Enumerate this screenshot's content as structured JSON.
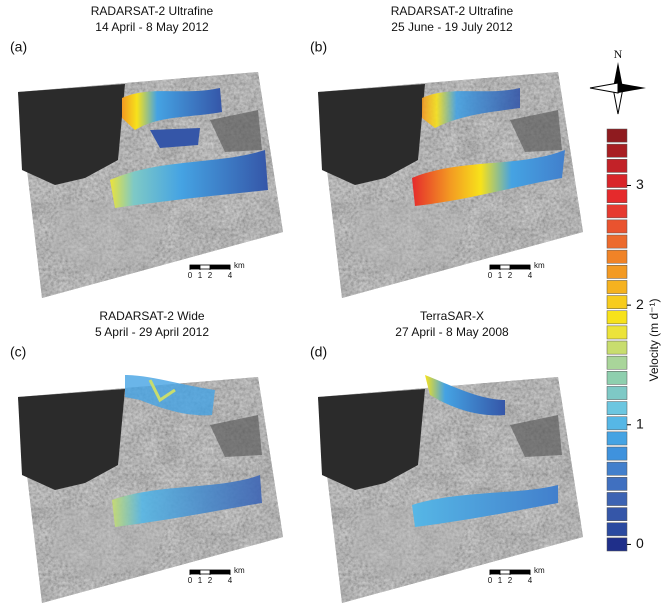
{
  "panels": [
    {
      "label": "(a)",
      "title": [
        "RADARSAT-2 Ultrafine",
        "14 April - 8 May 2012"
      ]
    },
    {
      "label": "(b)",
      "title": [
        "RADARSAT-2 Ultrafine",
        "25 June - 19 July 2012"
      ]
    },
    {
      "label": "(c)",
      "title": [
        "RADARSAT-2 Wide",
        "5 April - 29 April 2012"
      ]
    },
    {
      "label": "(d)",
      "title": [
        "TerraSAR-X",
        "27 April - 8 May 2008"
      ]
    }
  ],
  "scale_bar": {
    "unit": "km",
    "ticks": [
      0,
      1,
      2,
      4
    ]
  },
  "north": "N",
  "colorbar": {
    "label": "Velocity (m d⁻¹)",
    "ylim": [
      0,
      3.3
    ],
    "yticks": [
      0,
      1,
      2,
      3
    ],
    "colors": [
      "#1f2f8a",
      "#2b4aa0",
      "#3556a8",
      "#3d63b3",
      "#4070c0",
      "#427fcc",
      "#3f92dd",
      "#45a3e3",
      "#56b7e6",
      "#6cc6e0",
      "#7ec9c6",
      "#8ecfae",
      "#a9d59a",
      "#c8dd6e",
      "#ece33a",
      "#f7e21b",
      "#f7cc1d",
      "#f5b21f",
      "#f39a22",
      "#f08327",
      "#ec6a2c",
      "#e9532f",
      "#e63a30",
      "#e52a2c",
      "#d9252a",
      "#c22228",
      "#a81e22",
      "#8f1b1f"
    ]
  }
}
